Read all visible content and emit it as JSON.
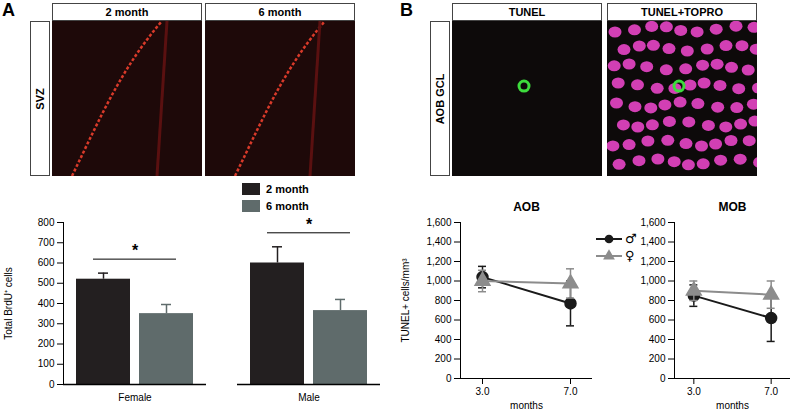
{
  "chart_data": [
    {
      "type": "bar",
      "categories": [
        "Female",
        "Male"
      ],
      "series": [
        {
          "name": "2 month",
          "color": "#231f20",
          "values": [
            520,
            600
          ],
          "errors": [
            30,
            80
          ]
        },
        {
          "name": "6 month",
          "color": "#5f6b6b",
          "values": [
            350,
            365
          ],
          "errors": [
            45,
            55
          ]
        }
      ],
      "ylabel": "Total BrdU⁺ cells",
      "ylim": [
        0,
        800
      ],
      "yticks": [
        0,
        100,
        200,
        300,
        400,
        500,
        600,
        700,
        800
      ],
      "legend": "top-right",
      "annotations": [
        {
          "category": "Female",
          "text": "*"
        },
        {
          "category": "Male",
          "text": "*"
        }
      ]
    },
    {
      "type": "line",
      "title": "AOB",
      "x": [
        3,
        7
      ],
      "xlim": [
        2,
        8
      ],
      "xticks": [
        3,
        7
      ],
      "xlabel": "months",
      "ylabel": "TUNEL+ cells/mm³",
      "ylim": [
        0,
        1600
      ],
      "yticks": [
        0,
        200,
        400,
        600,
        800,
        1000,
        1200,
        1400,
        1600
      ],
      "legend": "right",
      "series": [
        {
          "name": "♂",
          "color": "#1a1a1a",
          "marker": "circle",
          "values": [
            1040,
            770
          ],
          "errors": [
            110,
            230
          ]
        },
        {
          "name": "♀",
          "color": "#8c8c8c",
          "marker": "triangle",
          "values": [
            1000,
            975
          ],
          "errors": [
            110,
            150
          ]
        }
      ]
    },
    {
      "type": "line",
      "title": "MOB",
      "x": [
        3,
        7
      ],
      "xlim": [
        2,
        8
      ],
      "xticks": [
        3,
        7
      ],
      "xlabel": "months",
      "ylim": [
        0,
        1600
      ],
      "yticks": [
        0,
        200,
        400,
        600,
        800,
        1000,
        1200,
        1400,
        1600
      ],
      "series": [
        {
          "name": "♂",
          "color": "#1a1a1a",
          "marker": "circle",
          "values": [
            850,
            620
          ],
          "errors": [
            110,
            240
          ]
        },
        {
          "name": "♀",
          "color": "#8c8c8c",
          "marker": "triangle",
          "values": [
            900,
            860
          ],
          "errors": [
            100,
            140
          ]
        }
      ]
    }
  ],
  "figure": {
    "panel_labels": [
      "A",
      "B"
    ],
    "image_panels": [
      {
        "row_label": "SVZ",
        "columns": [
          "2 month",
          "6 month"
        ]
      },
      {
        "row_label": "AOB GCL",
        "columns": [
          "TUNEL",
          "TUNEL+TOPRO"
        ]
      }
    ]
  }
}
